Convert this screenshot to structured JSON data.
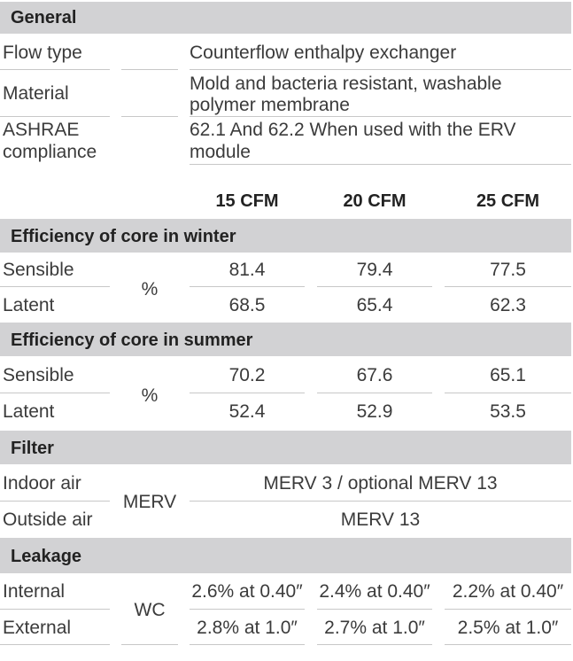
{
  "general": {
    "title": "General",
    "rows": [
      {
        "label": "Flow type",
        "value": "Counterflow enthalpy exchanger"
      },
      {
        "label": "Material",
        "value_line1": "Mold and bacteria resistant, washable",
        "value_line2": "polymer membrane"
      },
      {
        "label_line1": "ASHRAE",
        "label_line2": "compliance",
        "value_line1": "62.1 And 62.2 When used with the ERV",
        "value_line2": "module"
      }
    ]
  },
  "columns": [
    "15 CFM",
    "20 CFM",
    "25 CFM"
  ],
  "winter": {
    "title": "Efficiency  of core in winter",
    "unit": "%",
    "rows": [
      {
        "label": "Sensible",
        "values": [
          "81.4",
          "79.4",
          "77.5"
        ]
      },
      {
        "label": "Latent",
        "values": [
          "68.5",
          "65.4",
          "62.3"
        ]
      }
    ]
  },
  "summer": {
    "title": "Efficiency  of core in summer",
    "unit": "%",
    "rows": [
      {
        "label": "Sensible",
        "values": [
          "70.2",
          "67.6",
          "65.1"
        ]
      },
      {
        "label": "Latent",
        "values": [
          "52.4",
          "52.9",
          "53.5"
        ]
      }
    ]
  },
  "filter": {
    "title": "Filter",
    "unit": "MERV",
    "rows": [
      {
        "label": "Indoor air",
        "value": "MERV 3 / optional MERV 13"
      },
      {
        "label": "Outside air",
        "value": "MERV 13"
      }
    ]
  },
  "leakage": {
    "title": "Leakage",
    "unit": "WC",
    "rows": [
      {
        "label": "Internal",
        "values": [
          "2.6% at 0.40″",
          "2.4% at 0.40″",
          "2.2% at 0.40″"
        ]
      },
      {
        "label": "External",
        "values": [
          "2.8% at 1.0″",
          "2.7% at 1.0″",
          "2.5% at 1.0″"
        ]
      }
    ]
  }
}
